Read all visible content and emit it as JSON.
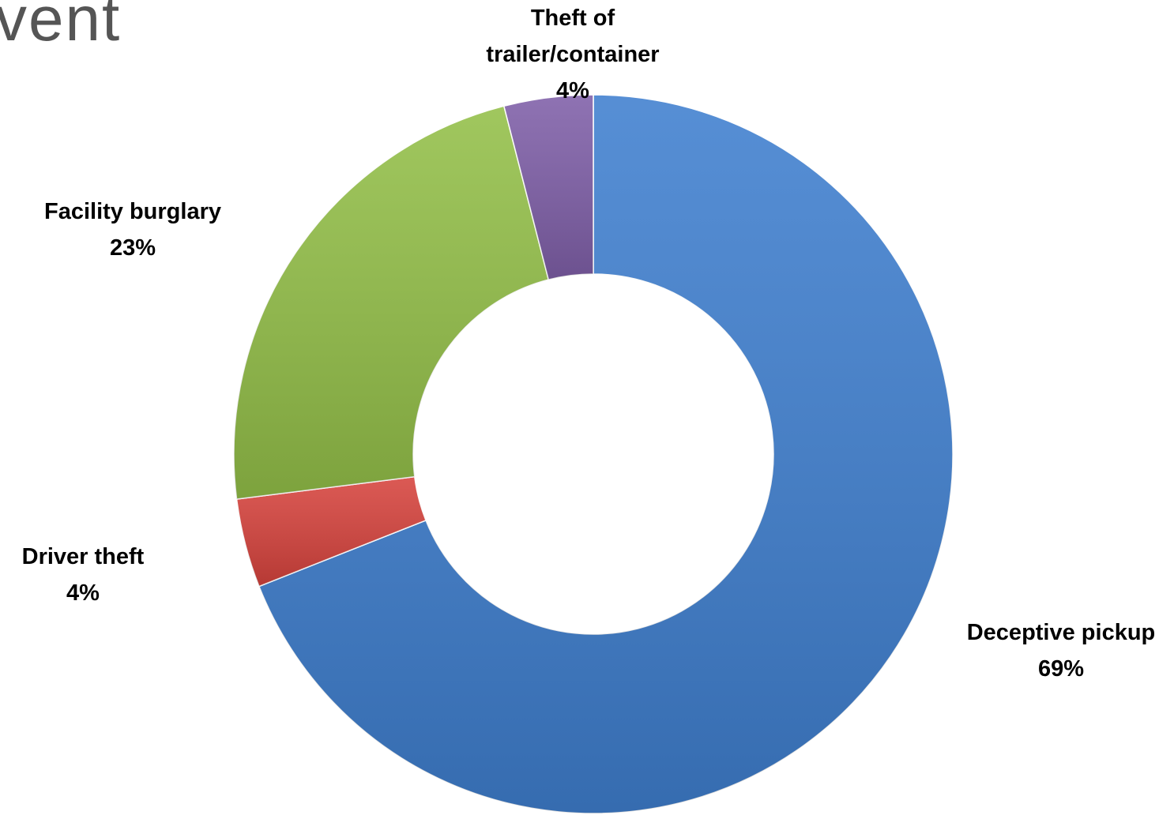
{
  "chart_data": {
    "type": "donut",
    "title": "vent",
    "categories": [
      "Deceptive pickup",
      "Driver theft",
      "Facility burglary",
      "Theft of trailer/container"
    ],
    "values": [
      69,
      4,
      23,
      4
    ],
    "value_labels": [
      "69%",
      "4%",
      "23%",
      "4%"
    ],
    "colors": [
      "#3f7fcf",
      "#d6433d",
      "#93bf48",
      "#7f5fa8"
    ]
  }
}
